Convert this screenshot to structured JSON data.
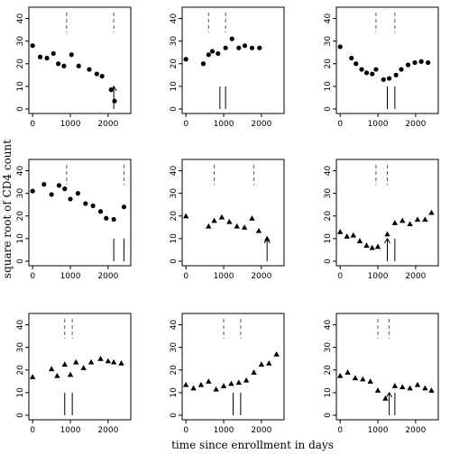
{
  "figure": {
    "xlabel": "time since enrollment in days",
    "ylabel": "square root of CD4 count"
  },
  "chart_data": [
    {
      "type": "scatter",
      "marker": "circle",
      "xlim": [
        -100,
        2600
      ],
      "ylim": [
        -2,
        45
      ],
      "xticks": [
        0,
        1000,
        2000
      ],
      "yticks": [
        0,
        10,
        20,
        30,
        40
      ],
      "x": [
        0,
        200,
        380,
        550,
        680,
        830,
        1030,
        1220,
        1500,
        1700,
        1840,
        2080,
        2170
      ],
      "y": [
        28,
        23,
        22.5,
        24.5,
        20,
        19,
        24,
        19,
        17.5,
        15.5,
        14.5,
        8.5,
        3.5
      ],
      "dashed_lines": [
        900,
        2150
      ],
      "solid_lines": [
        2150
      ],
      "arrows": [
        2150
      ]
    },
    {
      "type": "scatter",
      "marker": "circle",
      "xlim": [
        -100,
        2600
      ],
      "ylim": [
        -2,
        45
      ],
      "xticks": [
        0,
        1000,
        2000
      ],
      "yticks": [
        0,
        10,
        20,
        30,
        40
      ],
      "x": [
        0,
        460,
        600,
        700,
        850,
        1050,
        1220,
        1400,
        1560,
        1750,
        1950
      ],
      "y": [
        22,
        20,
        24,
        25.5,
        24.5,
        27,
        31,
        27,
        28,
        27,
        27
      ],
      "dashed_lines": [
        600,
        1050
      ],
      "solid_lines": [
        900,
        1050
      ],
      "arrows": []
    },
    {
      "type": "scatter",
      "marker": "circle",
      "xlim": [
        -100,
        2600
      ],
      "ylim": [
        -2,
        45
      ],
      "xticks": [
        0,
        1000,
        2000
      ],
      "yticks": [
        0,
        10,
        20,
        30,
        40
      ],
      "x": [
        0,
        300,
        420,
        570,
        700,
        850,
        950,
        1150,
        1300,
        1480,
        1620,
        1800,
        1980,
        2150,
        2330
      ],
      "y": [
        27.5,
        22.5,
        20,
        17.5,
        16,
        15.5,
        17.5,
        13,
        13.5,
        15,
        17.5,
        19.5,
        20.5,
        21,
        20.5
      ],
      "dashed_lines": [
        950,
        1450
      ],
      "solid_lines": [
        1250,
        1450
      ],
      "arrows": []
    },
    {
      "type": "scatter",
      "marker": "circle",
      "xlim": [
        -100,
        2600
      ],
      "ylim": [
        -2,
        45
      ],
      "xticks": [
        0,
        1000,
        2000
      ],
      "yticks": [
        0,
        10,
        20,
        30,
        40
      ],
      "x": [
        0,
        300,
        500,
        700,
        850,
        1000,
        1200,
        1400,
        1600,
        1800,
        1950,
        2150,
        2420
      ],
      "y": [
        31,
        34,
        29.5,
        33.5,
        32,
        27.5,
        30,
        25.5,
        24.5,
        22,
        19,
        18.5,
        24
      ],
      "dashed_lines": [
        900,
        2420
      ],
      "solid_lines": [
        2150,
        2420
      ],
      "arrows": []
    },
    {
      "type": "scatter",
      "marker": "triangle",
      "xlim": [
        -100,
        2600
      ],
      "ylim": [
        -2,
        45
      ],
      "xticks": [
        0,
        1000,
        2000
      ],
      "yticks": [
        0,
        10,
        20,
        30,
        40
      ],
      "x": [
        0,
        600,
        750,
        950,
        1150,
        1350,
        1550,
        1750,
        1930,
        2150
      ],
      "y": [
        20,
        15.5,
        18,
        19.5,
        17.5,
        15.5,
        15,
        19,
        13.5,
        10
      ],
      "dashed_lines": [
        750,
        1800
      ],
      "solid_lines": [
        2150
      ],
      "arrows": [
        2150
      ]
    },
    {
      "type": "scatter",
      "marker": "triangle",
      "xlim": [
        -100,
        2600
      ],
      "ylim": [
        -2,
        45
      ],
      "xticks": [
        0,
        1000,
        2000
      ],
      "yticks": [
        0,
        10,
        20,
        30,
        40
      ],
      "x": [
        0,
        180,
        350,
        520,
        700,
        850,
        1000,
        1250,
        1450,
        1650,
        1850,
        2050,
        2250,
        2420
      ],
      "y": [
        13,
        11,
        11.5,
        9,
        7,
        6,
        6.5,
        12,
        17,
        18,
        16.5,
        18.5,
        18.5,
        21.5
      ],
      "dashed_lines": [
        950,
        1250
      ],
      "solid_lines": [
        1250,
        1450
      ],
      "arrows": [
        1250
      ]
    },
    {
      "type": "scatter",
      "marker": "triangle",
      "xlim": [
        -100,
        2600
      ],
      "ylim": [
        -2,
        45
      ],
      "xticks": [
        0,
        1000,
        2000
      ],
      "yticks": [
        0,
        10,
        20,
        30,
        40
      ],
      "x": [
        0,
        500,
        650,
        850,
        1000,
        1150,
        1350,
        1550,
        1800,
        2000,
        2150,
        2350
      ],
      "y": [
        17,
        20.5,
        17.5,
        22.5,
        18,
        23.5,
        21,
        23.5,
        25,
        24,
        23.5,
        23
      ],
      "dashed_lines": [
        850,
        1050
      ],
      "solid_lines": [
        850,
        1050
      ],
      "arrows": []
    },
    {
      "type": "scatter",
      "marker": "triangle",
      "xlim": [
        -100,
        2600
      ],
      "ylim": [
        -2,
        45
      ],
      "xticks": [
        0,
        1000,
        2000
      ],
      "yticks": [
        0,
        10,
        20,
        30,
        40
      ],
      "x": [
        0,
        200,
        400,
        600,
        800,
        1000,
        1200,
        1400,
        1600,
        1800,
        2000,
        2200,
        2400
      ],
      "y": [
        13.5,
        12,
        13.5,
        15,
        11.5,
        13,
        14,
        14.5,
        15.5,
        19,
        22.5,
        23,
        27
      ],
      "dashed_lines": [
        1000,
        1450
      ],
      "solid_lines": [
        1250,
        1450
      ],
      "arrows": []
    },
    {
      "type": "scatter",
      "marker": "triangle",
      "xlim": [
        -100,
        2600
      ],
      "ylim": [
        -2,
        45
      ],
      "xticks": [
        0,
        1000,
        2000
      ],
      "yticks": [
        0,
        10,
        20,
        30,
        40
      ],
      "x": [
        0,
        200,
        400,
        600,
        800,
        1000,
        1200,
        1450,
        1650,
        1850,
        2050,
        2250,
        2420
      ],
      "y": [
        17.5,
        19,
        16.5,
        16,
        15,
        11,
        7.5,
        13,
        12.5,
        12,
        13.5,
        12,
        11
      ],
      "dashed_lines": [
        1000,
        1300
      ],
      "solid_lines": [
        1300,
        1450
      ],
      "arrows": [
        1300
      ]
    }
  ]
}
